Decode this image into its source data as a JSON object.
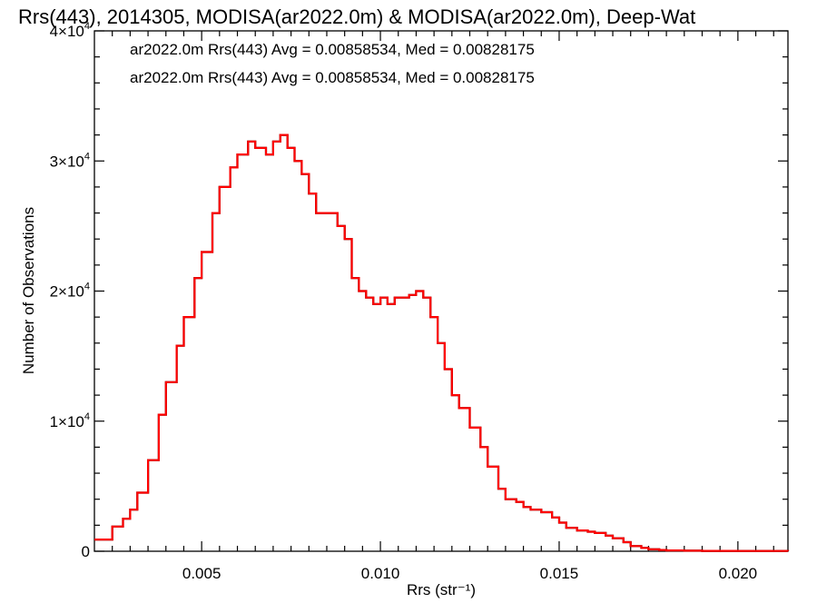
{
  "chart_data": {
    "type": "line",
    "title": "Rrs(443), 2014305, MODISA(ar2022.0m) & MODISA(ar2022.0m), Deep-Wat",
    "xlabel": "Rrs (str⁻¹)",
    "ylabel": "Number of Observations",
    "xlim": [
      0.002,
      0.0214
    ],
    "ylim": [
      0,
      40000
    ],
    "grid": false,
    "x_ticks": [
      {
        "value": 0.005,
        "label": "0.005"
      },
      {
        "value": 0.01,
        "label": "0.010"
      },
      {
        "value": 0.015,
        "label": "0.015"
      },
      {
        "value": 0.02,
        "label": "0.020"
      }
    ],
    "y_ticks": [
      {
        "value": 0,
        "label": "0"
      },
      {
        "value": 10000,
        "label": "1×10",
        "exp": "4"
      },
      {
        "value": 20000,
        "label": "2×10",
        "exp": "4"
      },
      {
        "value": 30000,
        "label": "3×10",
        "exp": "4"
      },
      {
        "value": 40000,
        "label": "4×10",
        "exp": "4"
      }
    ],
    "annotations": [
      {
        "text": "ar2022.0m Rrs(443) Avg = 0.00858534, Med = 0.00828175",
        "color": "#000000"
      },
      {
        "text": "ar2022.0m Rrs(443) Avg = 0.00858534, Med = 0.00828175",
        "color": "#ff0000"
      }
    ],
    "step": true,
    "series": [
      {
        "color": "#000000",
        "x": [
          0.002,
          0.0025,
          0.0028,
          0.003,
          0.0032,
          0.0035,
          0.0038,
          0.004,
          0.0043,
          0.0045,
          0.0048,
          0.005,
          0.0053,
          0.0055,
          0.0058,
          0.006,
          0.0063,
          0.0065,
          0.0068,
          0.007,
          0.0072,
          0.0074,
          0.0076,
          0.0078,
          0.008,
          0.0082,
          0.0084,
          0.0086,
          0.0088,
          0.009,
          0.0092,
          0.0094,
          0.0096,
          0.0098,
          0.01,
          0.0102,
          0.0104,
          0.0106,
          0.0108,
          0.011,
          0.0112,
          0.0114,
          0.0116,
          0.0118,
          0.012,
          0.0122,
          0.0125,
          0.0128,
          0.013,
          0.0133,
          0.0135,
          0.0138,
          0.014,
          0.0142,
          0.0145,
          0.0148,
          0.015,
          0.0152,
          0.0155,
          0.0158,
          0.016,
          0.0163,
          0.0165,
          0.0168,
          0.017,
          0.0173,
          0.0175,
          0.0178,
          0.018,
          0.0185,
          0.019,
          0.02,
          0.0214
        ],
        "values": [
          900,
          1900,
          2500,
          3200,
          4500,
          7000,
          10500,
          13000,
          15800,
          18000,
          21000,
          23000,
          26000,
          28000,
          29500,
          30500,
          31500,
          31000,
          30500,
          31500,
          32000,
          31000,
          30000,
          29000,
          27500,
          26000,
          26000,
          26000,
          25000,
          24000,
          21000,
          20000,
          19500,
          19000,
          19500,
          19000,
          19500,
          19500,
          19700,
          20000,
          19500,
          18000,
          16000,
          14000,
          12000,
          11000,
          9500,
          8000,
          6500,
          4800,
          4000,
          3800,
          3400,
          3200,
          3000,
          2600,
          2200,
          1800,
          1600,
          1500,
          1400,
          1200,
          1000,
          700,
          400,
          250,
          150,
          100,
          60,
          40,
          30,
          20,
          10
        ]
      },
      {
        "color": "#ff0000",
        "x": [
          0.002,
          0.0025,
          0.0028,
          0.003,
          0.0032,
          0.0035,
          0.0038,
          0.004,
          0.0043,
          0.0045,
          0.0048,
          0.005,
          0.0053,
          0.0055,
          0.0058,
          0.006,
          0.0063,
          0.0065,
          0.0068,
          0.007,
          0.0072,
          0.0074,
          0.0076,
          0.0078,
          0.008,
          0.0082,
          0.0084,
          0.0086,
          0.0088,
          0.009,
          0.0092,
          0.0094,
          0.0096,
          0.0098,
          0.01,
          0.0102,
          0.0104,
          0.0106,
          0.0108,
          0.011,
          0.0112,
          0.0114,
          0.0116,
          0.0118,
          0.012,
          0.0122,
          0.0125,
          0.0128,
          0.013,
          0.0133,
          0.0135,
          0.0138,
          0.014,
          0.0142,
          0.0145,
          0.0148,
          0.015,
          0.0152,
          0.0155,
          0.0158,
          0.016,
          0.0163,
          0.0165,
          0.0168,
          0.017,
          0.0173,
          0.0175,
          0.0178,
          0.018,
          0.0185,
          0.019,
          0.02,
          0.0214
        ],
        "values": [
          900,
          1900,
          2500,
          3200,
          4500,
          7000,
          10500,
          13000,
          15800,
          18000,
          21000,
          23000,
          26000,
          28000,
          29500,
          30500,
          31500,
          31000,
          30500,
          31500,
          32000,
          31000,
          30000,
          29000,
          27500,
          26000,
          26000,
          26000,
          25000,
          24000,
          21000,
          20000,
          19500,
          19000,
          19500,
          19000,
          19500,
          19500,
          19700,
          20000,
          19500,
          18000,
          16000,
          14000,
          12000,
          11000,
          9500,
          8000,
          6500,
          4800,
          4000,
          3800,
          3400,
          3200,
          3000,
          2600,
          2200,
          1800,
          1600,
          1500,
          1400,
          1200,
          1000,
          700,
          400,
          250,
          150,
          100,
          60,
          40,
          30,
          20,
          10
        ]
      }
    ]
  }
}
